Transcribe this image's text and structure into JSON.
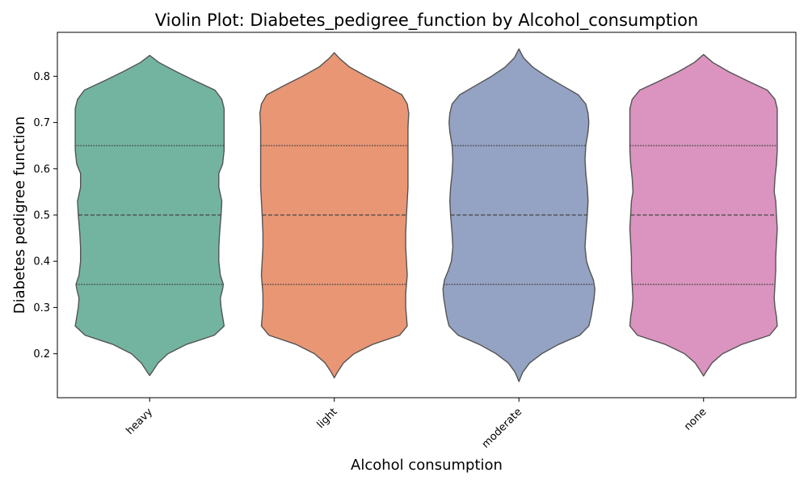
{
  "chart_data": {
    "type": "violin",
    "title": "Violin Plot: Diabetes_pedigree_function by Alcohol_consumption",
    "xlabel": "Alcohol consumption",
    "ylabel": "Diabetes pedigree function",
    "categories": [
      "heavy",
      "light",
      "moderate",
      "none"
    ],
    "colors": [
      "#73b4a0",
      "#e99675",
      "#94a3c3",
      "#da94bf"
    ],
    "ylim": [
      0.105,
      0.895
    ],
    "yticks": [
      0.2,
      0.3,
      0.4,
      0.5,
      0.6,
      0.7,
      0.8
    ],
    "grid": false,
    "legend": "none",
    "series": [
      {
        "category": "heavy",
        "quartiles": [
          0.35,
          0.5,
          0.65
        ],
        "min": 0.153,
        "max": 0.845,
        "density": [
          [
            0.153,
            0.0
          ],
          [
            0.16,
            0.03
          ],
          [
            0.18,
            0.11
          ],
          [
            0.2,
            0.24
          ],
          [
            0.22,
            0.48
          ],
          [
            0.24,
            0.85
          ],
          [
            0.26,
            0.98
          ],
          [
            0.28,
            0.96
          ],
          [
            0.3,
            0.94
          ],
          [
            0.32,
            0.93
          ],
          [
            0.34,
            0.96
          ],
          [
            0.35,
            0.97
          ],
          [
            0.37,
            0.93
          ],
          [
            0.4,
            0.91
          ],
          [
            0.43,
            0.91
          ],
          [
            0.46,
            0.92
          ],
          [
            0.5,
            0.94
          ],
          [
            0.53,
            0.95
          ],
          [
            0.56,
            0.91
          ],
          [
            0.59,
            0.91
          ],
          [
            0.61,
            0.96
          ],
          [
            0.64,
            0.98
          ],
          [
            0.67,
            0.98
          ],
          [
            0.7,
            0.98
          ],
          [
            0.73,
            0.98
          ],
          [
            0.75,
            0.95
          ],
          [
            0.77,
            0.86
          ],
          [
            0.79,
            0.6
          ],
          [
            0.81,
            0.35
          ],
          [
            0.83,
            0.12
          ],
          [
            0.845,
            0.0
          ]
        ]
      },
      {
        "category": "light",
        "quartiles": [
          0.35,
          0.5,
          0.65
        ],
        "min": 0.148,
        "max": 0.851,
        "density": [
          [
            0.148,
            0.0
          ],
          [
            0.16,
            0.04
          ],
          [
            0.18,
            0.12
          ],
          [
            0.2,
            0.26
          ],
          [
            0.22,
            0.5
          ],
          [
            0.24,
            0.86
          ],
          [
            0.26,
            0.96
          ],
          [
            0.28,
            0.95
          ],
          [
            0.3,
            0.94
          ],
          [
            0.33,
            0.94
          ],
          [
            0.35,
            0.95
          ],
          [
            0.37,
            0.96
          ],
          [
            0.4,
            0.95
          ],
          [
            0.43,
            0.94
          ],
          [
            0.46,
            0.94
          ],
          [
            0.5,
            0.95
          ],
          [
            0.53,
            0.96
          ],
          [
            0.56,
            0.97
          ],
          [
            0.6,
            0.97
          ],
          [
            0.63,
            0.97
          ],
          [
            0.66,
            0.97
          ],
          [
            0.69,
            0.97
          ],
          [
            0.72,
            0.98
          ],
          [
            0.74,
            0.96
          ],
          [
            0.76,
            0.89
          ],
          [
            0.78,
            0.66
          ],
          [
            0.8,
            0.42
          ],
          [
            0.82,
            0.2
          ],
          [
            0.84,
            0.06
          ],
          [
            0.851,
            0.0
          ]
        ]
      },
      {
        "category": "moderate",
        "quartiles": [
          0.35,
          0.5,
          0.65
        ],
        "min": 0.14,
        "max": 0.859,
        "density": [
          [
            0.14,
            0.0
          ],
          [
            0.16,
            0.05
          ],
          [
            0.18,
            0.14
          ],
          [
            0.2,
            0.3
          ],
          [
            0.22,
            0.52
          ],
          [
            0.24,
            0.8
          ],
          [
            0.26,
            0.92
          ],
          [
            0.28,
            0.95
          ],
          [
            0.3,
            0.97
          ],
          [
            0.32,
            0.99
          ],
          [
            0.34,
            1.0
          ],
          [
            0.36,
            0.98
          ],
          [
            0.38,
            0.93
          ],
          [
            0.4,
            0.89
          ],
          [
            0.43,
            0.87
          ],
          [
            0.46,
            0.88
          ],
          [
            0.5,
            0.9
          ],
          [
            0.53,
            0.91
          ],
          [
            0.56,
            0.9
          ],
          [
            0.59,
            0.88
          ],
          [
            0.62,
            0.87
          ],
          [
            0.65,
            0.88
          ],
          [
            0.68,
            0.91
          ],
          [
            0.7,
            0.92
          ],
          [
            0.72,
            0.91
          ],
          [
            0.74,
            0.88
          ],
          [
            0.76,
            0.78
          ],
          [
            0.78,
            0.57
          ],
          [
            0.8,
            0.36
          ],
          [
            0.82,
            0.18
          ],
          [
            0.84,
            0.06
          ],
          [
            0.859,
            0.0
          ]
        ]
      },
      {
        "category": "none",
        "quartiles": [
          0.35,
          0.5,
          0.65
        ],
        "min": 0.152,
        "max": 0.847,
        "density": [
          [
            0.152,
            0.0
          ],
          [
            0.16,
            0.03
          ],
          [
            0.18,
            0.11
          ],
          [
            0.2,
            0.25
          ],
          [
            0.22,
            0.5
          ],
          [
            0.24,
            0.87
          ],
          [
            0.26,
            0.97
          ],
          [
            0.28,
            0.96
          ],
          [
            0.3,
            0.94
          ],
          [
            0.32,
            0.93
          ],
          [
            0.35,
            0.94
          ],
          [
            0.38,
            0.95
          ],
          [
            0.41,
            0.95
          ],
          [
            0.44,
            0.96
          ],
          [
            0.47,
            0.97
          ],
          [
            0.5,
            0.96
          ],
          [
            0.53,
            0.95
          ],
          [
            0.55,
            0.93
          ],
          [
            0.58,
            0.94
          ],
          [
            0.61,
            0.96
          ],
          [
            0.64,
            0.97
          ],
          [
            0.67,
            0.97
          ],
          [
            0.7,
            0.97
          ],
          [
            0.73,
            0.97
          ],
          [
            0.75,
            0.94
          ],
          [
            0.77,
            0.84
          ],
          [
            0.79,
            0.58
          ],
          [
            0.81,
            0.33
          ],
          [
            0.83,
            0.12
          ],
          [
            0.847,
            0.0
          ]
        ]
      }
    ]
  }
}
